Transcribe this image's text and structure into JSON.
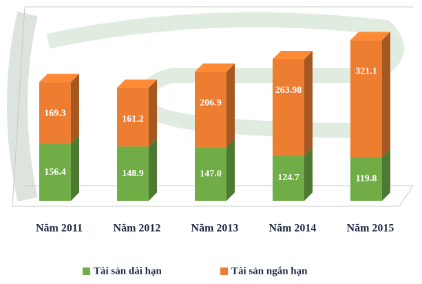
{
  "chart_data": {
    "type": "bar3d_stacked",
    "categories": [
      "Năm 2011",
      "Năm 2012",
      "Năm 2013",
      "Năm 2014",
      "Năm 2015"
    ],
    "series": [
      {
        "name": "Tài sản dài hạn",
        "color": "#70ad47",
        "values": [
          156.4,
          148.9,
          147.0,
          124.7,
          119.8
        ],
        "value_labels": [
          "156.4",
          "148.9",
          "147.0",
          "124.7",
          "119.8"
        ]
      },
      {
        "name": "Tài sản ngắn hạn",
        "color": "#ed7d31",
        "values": [
          169.3,
          161.2,
          206.9,
          263.98,
          321.1
        ]
      }
    ],
    "legend": "bottom"
  }
}
